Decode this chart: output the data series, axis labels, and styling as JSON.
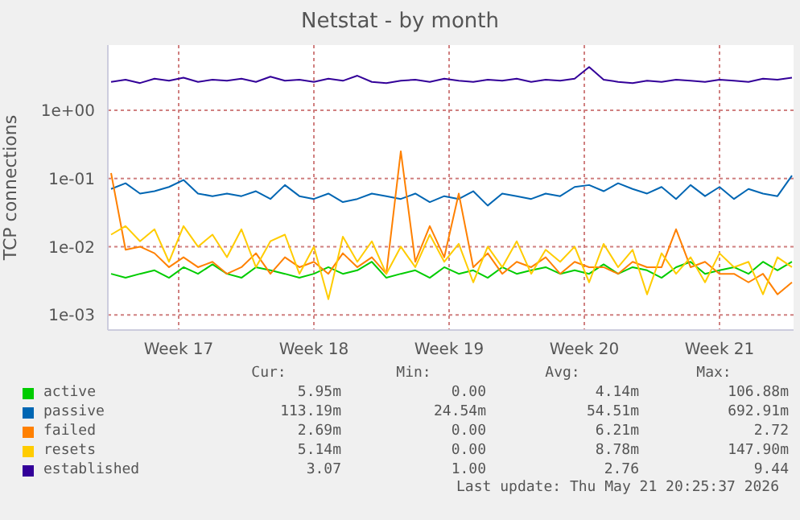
{
  "chart_data": {
    "type": "line",
    "title": "Netstat - by month",
    "ylabel": "TCP connections",
    "log": "y",
    "grid": true,
    "legend": "bottom",
    "marker": "none",
    "line_style": "solid",
    "x": [
      "2026-04-16T12:00",
      "2026-04-17T06:00",
      "2026-04-18T00:00",
      "2026-04-18T18:00",
      "2026-04-19T12:00",
      "2026-04-20T06:00",
      "2026-04-21T00:00",
      "2026-04-21T18:00",
      "2026-04-22T12:00",
      "2026-04-23T06:00",
      "2026-04-24T00:00",
      "2026-04-24T18:00",
      "2026-04-25T12:00",
      "2026-04-26T06:00",
      "2026-04-27T00:00",
      "2026-04-27T18:00",
      "2026-04-28T12:00",
      "2026-04-29T06:00",
      "2026-04-30T00:00",
      "2026-04-30T18:00",
      "2026-05-01T12:00",
      "2026-05-02T06:00",
      "2026-05-03T00:00",
      "2026-05-03T18:00",
      "2026-05-04T12:00",
      "2026-05-05T06:00",
      "2026-05-06T00:00",
      "2026-05-06T18:00",
      "2026-05-07T12:00",
      "2026-05-08T06:00",
      "2026-05-09T00:00",
      "2026-05-09T18:00",
      "2026-05-10T12:00",
      "2026-05-11T06:00",
      "2026-05-12T00:00",
      "2026-05-12T18:00",
      "2026-05-13T12:00",
      "2026-05-14T06:00",
      "2026-05-15T00:00",
      "2026-05-15T18:00",
      "2026-05-16T12:00",
      "2026-05-17T06:00",
      "2026-05-18T00:00",
      "2026-05-18T18:00",
      "2026-05-19T12:00",
      "2026-05-20T06:00",
      "2026-05-21T00:00",
      "2026-05-21T18:00"
    ],
    "xlim": [
      "2026-04-16T08:00",
      "2026-05-21T20:00"
    ],
    "xticks": [
      {
        "value": "2026-04-20",
        "label": "Week 17"
      },
      {
        "value": "2026-04-27",
        "label": "Week 18"
      },
      {
        "value": "2026-05-04",
        "label": "Week 19"
      },
      {
        "value": "2026-05-11",
        "label": "Week 20"
      },
      {
        "value": "2026-05-18",
        "label": "Week 21"
      }
    ],
    "ylim": [
      0.0006,
      9
    ],
    "yticks": [
      {
        "value": 0.001,
        "label": "1e-03"
      },
      {
        "value": 0.01,
        "label": "1e-02"
      },
      {
        "value": 0.1,
        "label": "1e-01"
      },
      {
        "value": 1,
        "label": "1e+00"
      }
    ],
    "series": [
      {
        "name": "active",
        "color": "#00cc00",
        "values": [
          0.004,
          0.0035,
          0.004,
          0.0045,
          0.0035,
          0.005,
          0.004,
          0.0055,
          0.004,
          0.0035,
          0.005,
          0.0045,
          0.004,
          0.0035,
          0.004,
          0.005,
          0.004,
          0.0045,
          0.006,
          0.0035,
          0.004,
          0.0045,
          0.0035,
          0.005,
          0.004,
          0.0045,
          0.0035,
          0.005,
          0.004,
          0.0045,
          0.005,
          0.004,
          0.0045,
          0.004,
          0.0055,
          0.004,
          0.005,
          0.0045,
          0.0035,
          0.005,
          0.006,
          0.004,
          0.0045,
          0.005,
          0.004,
          0.006,
          0.0045,
          0.006
        ]
      },
      {
        "name": "passive",
        "color": "#0066b3",
        "values": [
          0.07,
          0.085,
          0.06,
          0.065,
          0.075,
          0.095,
          0.06,
          0.055,
          0.06,
          0.055,
          0.065,
          0.05,
          0.08,
          0.055,
          0.05,
          0.06,
          0.045,
          0.05,
          0.06,
          0.055,
          0.05,
          0.06,
          0.045,
          0.055,
          0.05,
          0.065,
          0.04,
          0.06,
          0.055,
          0.05,
          0.06,
          0.055,
          0.075,
          0.08,
          0.065,
          0.085,
          0.07,
          0.06,
          0.075,
          0.05,
          0.08,
          0.055,
          0.075,
          0.05,
          0.07,
          0.06,
          0.055,
          0.11
        ]
      },
      {
        "name": "failed",
        "color": "#ff8000",
        "values": [
          0.12,
          0.009,
          0.01,
          0.008,
          0.005,
          0.007,
          0.005,
          0.006,
          0.004,
          0.005,
          0.008,
          0.004,
          0.007,
          0.005,
          0.006,
          0.004,
          0.008,
          0.005,
          0.007,
          0.004,
          0.25,
          0.006,
          0.02,
          0.007,
          0.06,
          0.005,
          0.008,
          0.004,
          0.006,
          0.005,
          0.007,
          0.004,
          0.006,
          0.005,
          0.005,
          0.004,
          0.006,
          0.005,
          0.005,
          0.018,
          0.005,
          0.006,
          0.004,
          0.004,
          0.003,
          0.004,
          0.002,
          0.003
        ]
      },
      {
        "name": "resets",
        "color": "#ffcc00",
        "values": [
          0.015,
          0.02,
          0.012,
          0.018,
          0.006,
          0.02,
          0.01,
          0.015,
          0.007,
          0.018,
          0.005,
          0.012,
          0.015,
          0.004,
          0.01,
          0.0017,
          0.014,
          0.006,
          0.012,
          0.004,
          0.01,
          0.005,
          0.015,
          0.006,
          0.011,
          0.003,
          0.01,
          0.005,
          0.012,
          0.004,
          0.009,
          0.006,
          0.01,
          0.003,
          0.011,
          0.005,
          0.009,
          0.002,
          0.008,
          0.004,
          0.007,
          0.003,
          0.008,
          0.005,
          0.006,
          0.002,
          0.007,
          0.005
        ]
      },
      {
        "name": "established",
        "color": "#330099",
        "values": [
          2.6,
          2.8,
          2.5,
          2.9,
          2.7,
          3.0,
          2.6,
          2.8,
          2.7,
          2.9,
          2.6,
          3.1,
          2.7,
          2.8,
          2.6,
          2.9,
          2.7,
          3.2,
          2.6,
          2.5,
          2.7,
          2.8,
          2.6,
          2.9,
          2.7,
          2.6,
          2.8,
          2.7,
          2.9,
          2.6,
          2.8,
          2.7,
          2.9,
          4.3,
          2.8,
          2.6,
          2.5,
          2.7,
          2.6,
          2.8,
          2.7,
          2.6,
          2.8,
          2.7,
          2.6,
          2.9,
          2.8,
          3.0
        ]
      }
    ],
    "annotations": [
      "Cur:",
      "Min:",
      "Avg:",
      "Max:",
      "5.95m",
      "0.00",
      "4.14m",
      "106.88m",
      "113.19m",
      "24.54m",
      "54.51m",
      "692.91m",
      "2.69m",
      "0.00",
      "6.21m",
      "2.72",
      "5.14m",
      "0.00",
      "8.78m",
      "147.90m",
      "3.07",
      "1.00",
      "2.76",
      "9.44",
      "Last update: Thu May 21 20:25:37 2026"
    ]
  }
}
